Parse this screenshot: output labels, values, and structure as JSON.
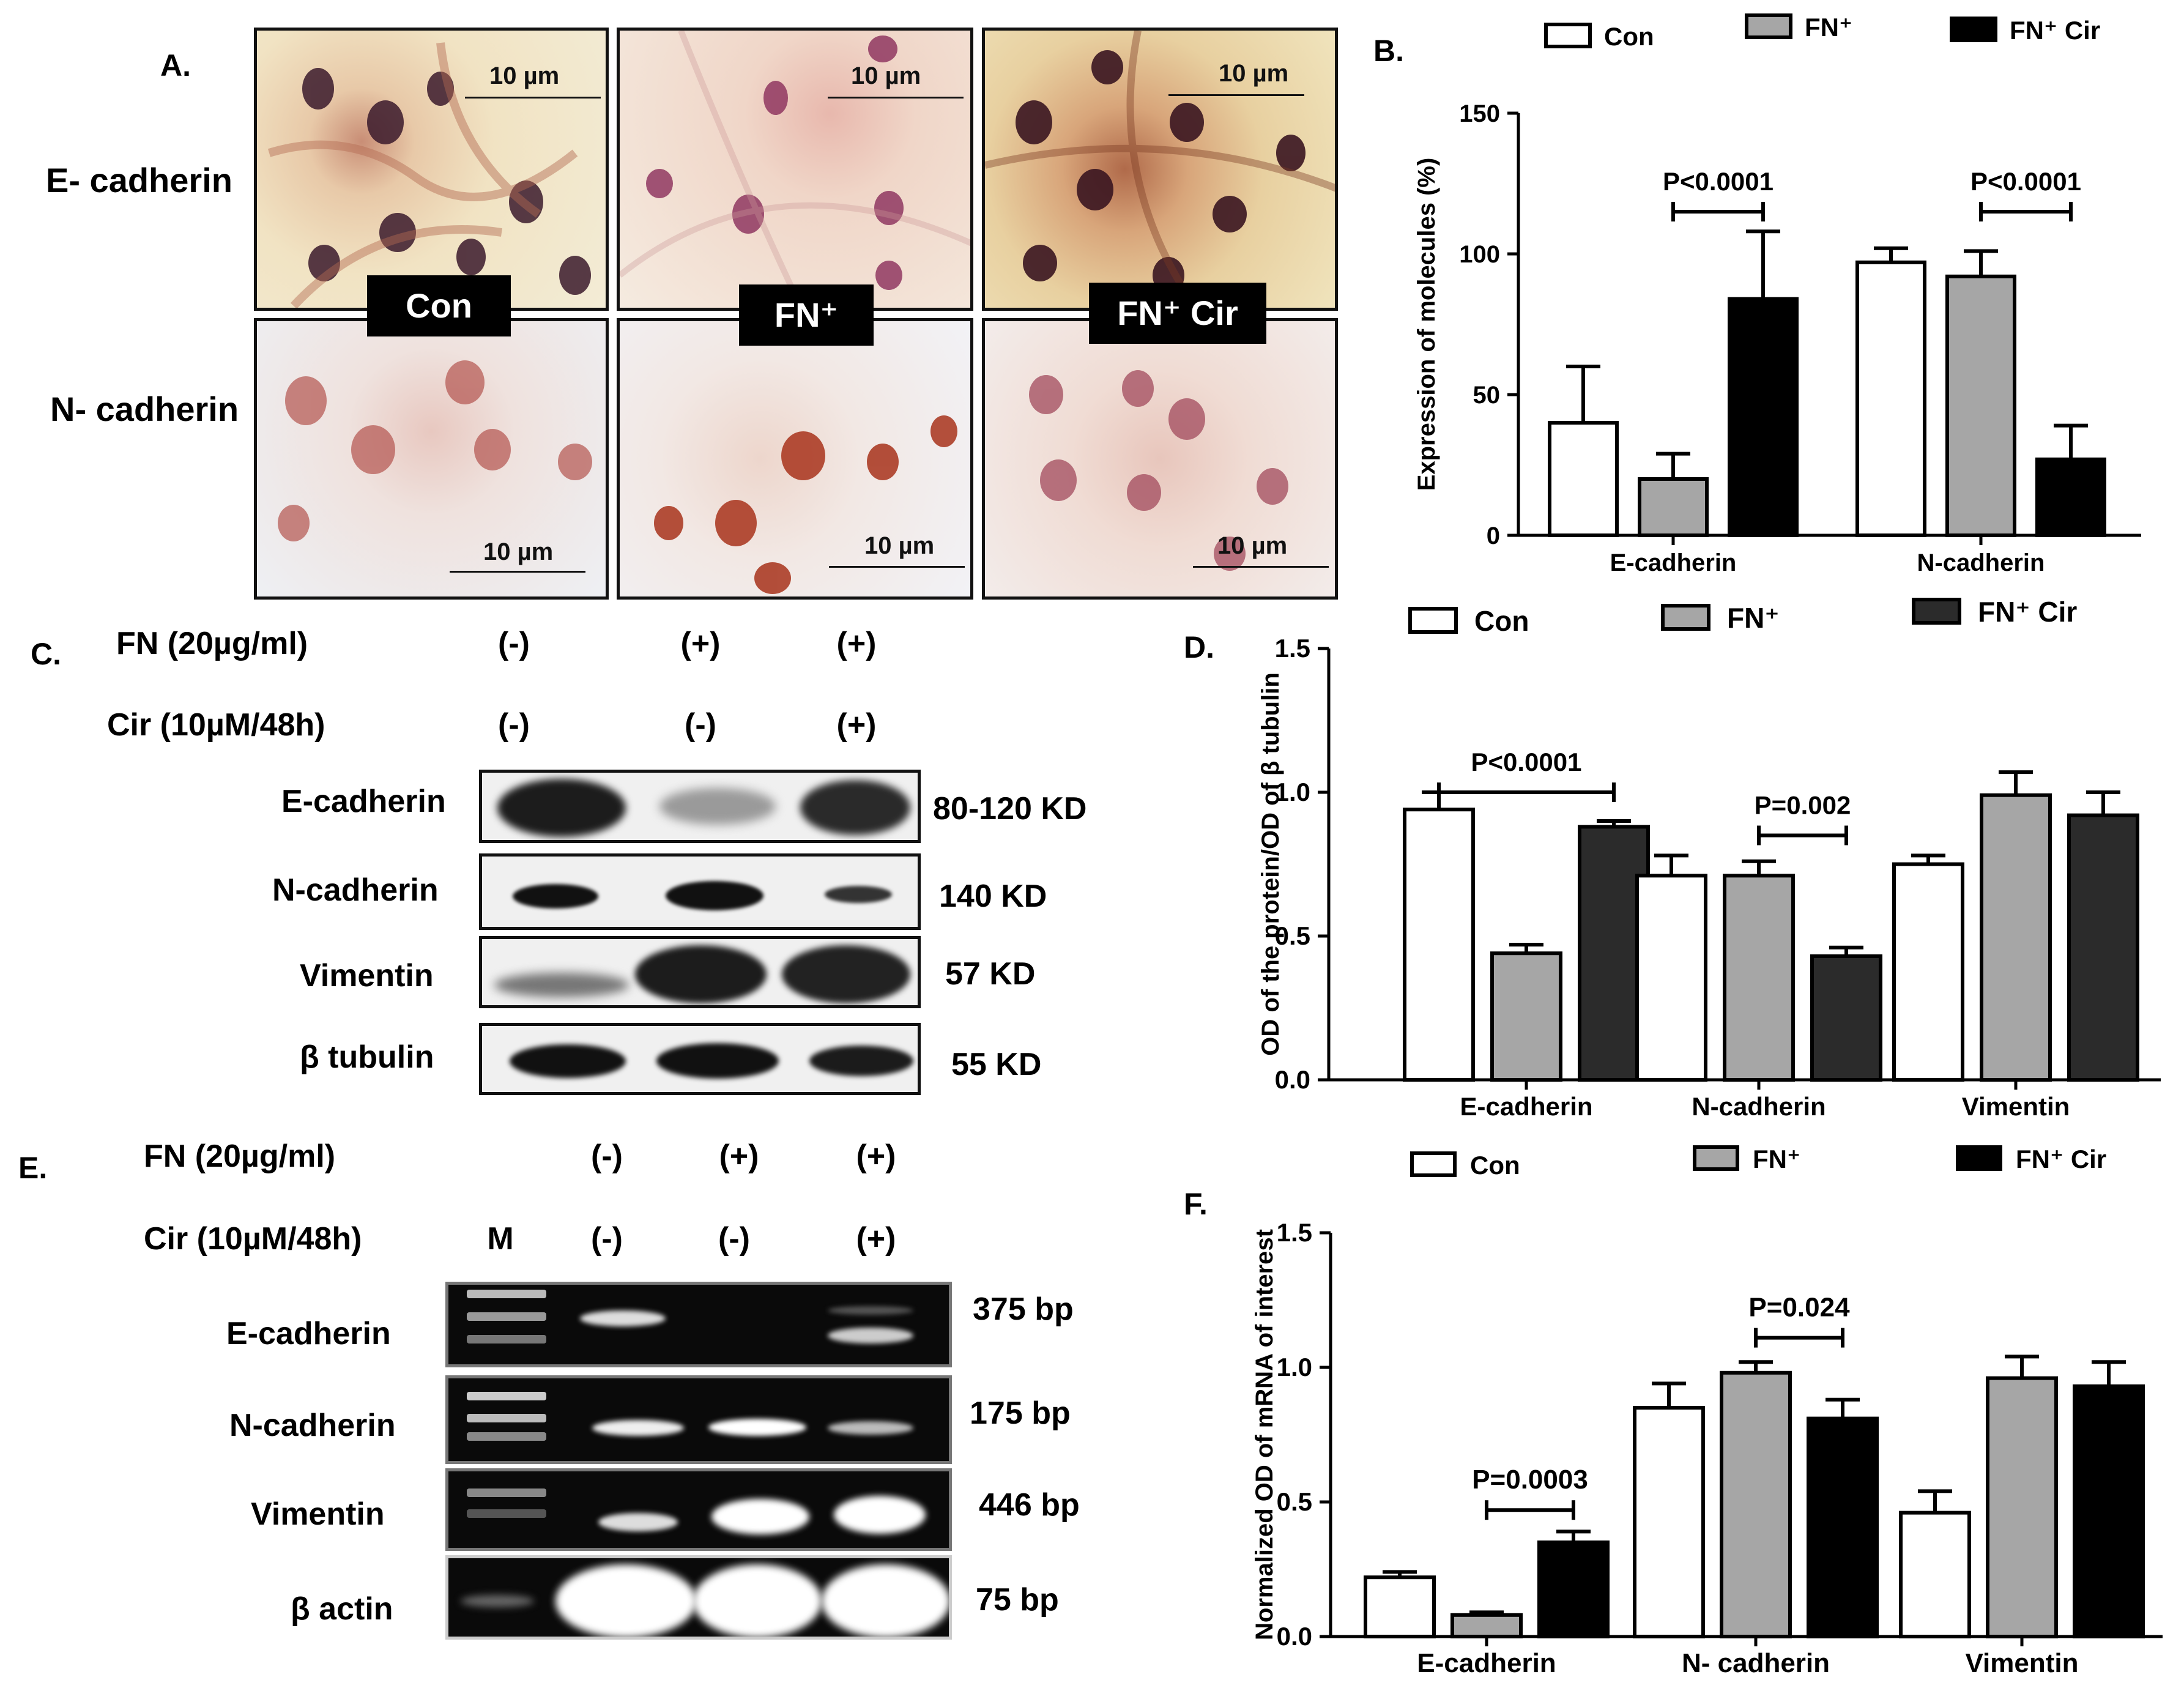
{
  "panelA": {
    "letter": "A.",
    "rows": [
      "E- cadherin",
      "N- cadherin"
    ],
    "conditions": [
      "Con",
      "FN⁺",
      "FN⁺ Cir"
    ],
    "scale_label": "10 µm"
  },
  "panelC": {
    "letter": "C.",
    "fn_label": "FN (20µg/ml)",
    "cir_label": "Cir (10µM/48h)",
    "fn_signs": [
      "(-)",
      "(+)",
      "(+)"
    ],
    "cir_signs": [
      "(-)",
      "(-)",
      "(+)"
    ],
    "proteins": [
      "E-cadherin",
      "N-cadherin",
      "Vimentin",
      "β tubulin"
    ],
    "sizes": [
      "80-120 KD",
      "140 KD",
      "57 KD",
      "55 KD"
    ]
  },
  "panelE": {
    "letter": "E.",
    "fn_label": "FN (20µg/ml)",
    "cir_label": "Cir (10µM/48h)",
    "marker": "M",
    "fn_signs": [
      "(-)",
      "(+)",
      "(+)"
    ],
    "cir_signs": [
      "(-)",
      "(-)",
      "(+)"
    ],
    "genes": [
      "E-cadherin",
      "N-cadherin",
      "Vimentin",
      "β actin"
    ],
    "sizes": [
      "375 bp",
      "175 bp",
      "446 bp",
      "75 bp"
    ]
  },
  "colors": {
    "con": "#ffffff",
    "fn": "#a6a6a6",
    "cir_b": "#000000",
    "cir_d": "#2b2b2b",
    "cir_f": "#000000"
  },
  "chart_data": [
    {
      "panel": "B.",
      "type": "bar",
      "ylabel": "Expression of molecules (%)",
      "ylim": [
        0,
        150
      ],
      "yticks": [
        0,
        50,
        100,
        150
      ],
      "categories": [
        "E-cadherin",
        "N-cadherin"
      ],
      "legend_position": "top",
      "series": [
        {
          "name": "Con",
          "values": [
            40,
            97
          ],
          "errors": [
            20,
            5
          ]
        },
        {
          "name": "FN⁺",
          "values": [
            20,
            92
          ],
          "errors": [
            9,
            9
          ]
        },
        {
          "name": "FN⁺ Cir",
          "values": [
            84,
            27
          ],
          "errors": [
            24,
            12
          ]
        }
      ],
      "annotations": [
        {
          "text": "P<0.0001",
          "category": 0,
          "from_series": 1,
          "to_series": 2,
          "y": 115
        },
        {
          "text": "P<0.0001",
          "category": 1,
          "from_series": 1,
          "to_series": 2,
          "y": 115
        }
      ]
    },
    {
      "panel": "D.",
      "type": "bar",
      "ylabel": "OD of the protein/OD of β tubulin",
      "ylim": [
        0,
        1.5
      ],
      "yticks": [
        "0.0",
        "0.5",
        "1.0",
        "1.5"
      ],
      "categories": [
        "E-cadherin",
        "N-cadherin",
        "Vimentin"
      ],
      "legend_position": "top",
      "series": [
        {
          "name": "Con",
          "values": [
            0.94,
            0.71,
            0.75
          ],
          "errors": [
            0.06,
            0.07,
            0.03
          ]
        },
        {
          "name": "FN⁺",
          "values": [
            0.44,
            0.71,
            0.99
          ],
          "errors": [
            0.03,
            0.05,
            0.08
          ]
        },
        {
          "name": "FN⁺ Cir",
          "values": [
            0.88,
            0.43,
            0.92
          ],
          "errors": [
            0.02,
            0.03,
            0.08
          ]
        }
      ],
      "annotations": [
        {
          "text": "P<0.0001",
          "category": 0,
          "from_series": 0,
          "to_series": 2,
          "y": 1.0
        },
        {
          "text": "P=0.002",
          "category": 1,
          "from_series": 1,
          "to_series": 2,
          "y": 0.85
        }
      ]
    },
    {
      "panel": "F.",
      "type": "bar",
      "ylabel": "Normalized OD of mRNA of interest",
      "ylim": [
        0,
        1.5
      ],
      "yticks": [
        "0.0",
        "0.5",
        "1.0",
        "1.5"
      ],
      "categories": [
        "E-cadherin",
        "N- cadherin",
        "Vimentin"
      ],
      "legend_position": "top",
      "series": [
        {
          "name": "Con",
          "values": [
            0.22,
            0.85,
            0.46
          ],
          "errors": [
            0.02,
            0.09,
            0.08
          ]
        },
        {
          "name": "FN⁺",
          "values": [
            0.08,
            0.98,
            0.96
          ],
          "errors": [
            0.01,
            0.04,
            0.08
          ]
        },
        {
          "name": "FN⁺ Cir",
          "values": [
            0.35,
            0.81,
            0.93
          ],
          "errors": [
            0.04,
            0.07,
            0.09
          ]
        }
      ],
      "annotations": [
        {
          "text": "P=0.0003",
          "category": 0,
          "from_series": 1,
          "to_series": 2,
          "y": 0.47
        },
        {
          "text": "P=0.024",
          "category": 1,
          "from_series": 1,
          "to_series": 2,
          "y": 1.11
        }
      ]
    }
  ]
}
